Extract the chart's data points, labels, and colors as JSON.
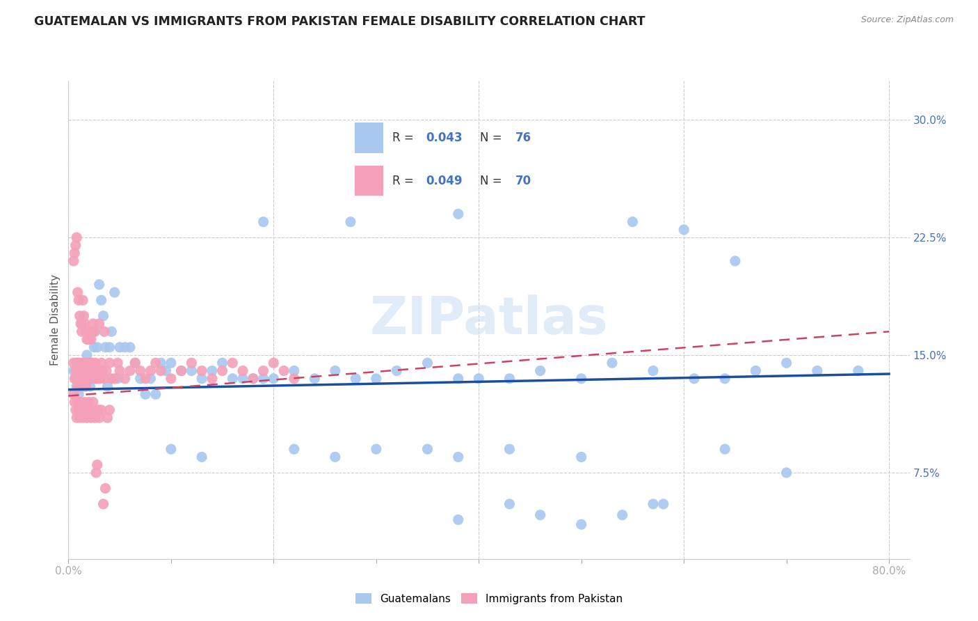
{
  "title": "GUATEMALAN VS IMMIGRANTS FROM PAKISTAN FEMALE DISABILITY CORRELATION CHART",
  "source": "Source: ZipAtlas.com",
  "ylabel": "Female Disability",
  "xlim": [
    0.0,
    0.82
  ],
  "ylim": [
    0.02,
    0.325
  ],
  "blue_color": "#a8c8f0",
  "pink_color": "#f4a0b8",
  "blue_line_color": "#1a4fa0",
  "pink_line_color": "#d04060",
  "watermark": "ZIPatlas",
  "legend_r1_black": "R = ",
  "legend_r1_blue": "0.043",
  "legend_n1_black": "   N = ",
  "legend_n1_blue": "76",
  "legend_r2_black": "R = ",
  "legend_r2_blue": "0.049",
  "legend_n2_black": "   N = ",
  "legend_n2_blue": "70",
  "guatemalan_scatter_x": [
    0.005,
    0.007,
    0.008,
    0.009,
    0.01,
    0.01,
    0.012,
    0.013,
    0.014,
    0.015,
    0.015,
    0.016,
    0.017,
    0.018,
    0.018,
    0.019,
    0.02,
    0.02,
    0.021,
    0.022,
    0.023,
    0.024,
    0.025,
    0.026,
    0.027,
    0.028,
    0.03,
    0.032,
    0.034,
    0.036,
    0.038,
    0.04,
    0.042,
    0.045,
    0.048,
    0.05,
    0.055,
    0.06,
    0.065,
    0.07,
    0.075,
    0.08,
    0.085,
    0.09,
    0.095,
    0.1,
    0.11,
    0.12,
    0.13,
    0.14,
    0.15,
    0.16,
    0.17,
    0.18,
    0.19,
    0.2,
    0.22,
    0.24,
    0.26,
    0.28,
    0.3,
    0.32,
    0.35,
    0.38,
    0.4,
    0.43,
    0.46,
    0.5,
    0.53,
    0.57,
    0.61,
    0.64,
    0.67,
    0.7,
    0.73,
    0.77
  ],
  "guatemalan_scatter_y": [
    0.14,
    0.135,
    0.13,
    0.145,
    0.14,
    0.125,
    0.135,
    0.13,
    0.14,
    0.135,
    0.145,
    0.14,
    0.13,
    0.135,
    0.15,
    0.14,
    0.135,
    0.14,
    0.13,
    0.145,
    0.135,
    0.14,
    0.155,
    0.165,
    0.135,
    0.155,
    0.195,
    0.185,
    0.175,
    0.155,
    0.13,
    0.155,
    0.165,
    0.19,
    0.135,
    0.155,
    0.155,
    0.155,
    0.145,
    0.135,
    0.125,
    0.135,
    0.125,
    0.145,
    0.14,
    0.145,
    0.14,
    0.14,
    0.135,
    0.14,
    0.145,
    0.135,
    0.135,
    0.135,
    0.135,
    0.135,
    0.14,
    0.135,
    0.14,
    0.135,
    0.135,
    0.14,
    0.145,
    0.135,
    0.135,
    0.135,
    0.14,
    0.135,
    0.145,
    0.14,
    0.135,
    0.135,
    0.14,
    0.145,
    0.14,
    0.14
  ],
  "guatemalan_outlier_x": [
    0.19,
    0.275,
    0.38,
    0.55,
    0.6,
    0.65
  ],
  "guatemalan_outlier_y": [
    0.235,
    0.235,
    0.24,
    0.235,
    0.23,
    0.21
  ],
  "guatemalan_low_x": [
    0.1,
    0.13,
    0.22,
    0.26,
    0.3,
    0.35,
    0.38,
    0.43,
    0.5,
    0.57,
    0.64,
    0.7
  ],
  "guatemalan_low_y": [
    0.09,
    0.085,
    0.09,
    0.085,
    0.09,
    0.09,
    0.085,
    0.09,
    0.085,
    0.055,
    0.09,
    0.075
  ],
  "guatemalan_vlow_x": [
    0.38,
    0.43,
    0.46,
    0.5,
    0.54,
    0.58
  ],
  "guatemalan_vlow_y": [
    0.045,
    0.055,
    0.048,
    0.042,
    0.048,
    0.055
  ],
  "pakistan_scatter_x": [
    0.005,
    0.006,
    0.007,
    0.008,
    0.008,
    0.009,
    0.009,
    0.01,
    0.01,
    0.011,
    0.011,
    0.012,
    0.012,
    0.013,
    0.013,
    0.014,
    0.014,
    0.015,
    0.015,
    0.016,
    0.016,
    0.017,
    0.017,
    0.018,
    0.018,
    0.019,
    0.019,
    0.02,
    0.02,
    0.021,
    0.022,
    0.023,
    0.024,
    0.025,
    0.026,
    0.027,
    0.028,
    0.029,
    0.03,
    0.031,
    0.032,
    0.033,
    0.035,
    0.037,
    0.04,
    0.042,
    0.045,
    0.048,
    0.05,
    0.055,
    0.06,
    0.065,
    0.07,
    0.075,
    0.08,
    0.085,
    0.09,
    0.1,
    0.11,
    0.12,
    0.13,
    0.14,
    0.15,
    0.16,
    0.17,
    0.18,
    0.19,
    0.2,
    0.21,
    0.22
  ],
  "pakistan_scatter_y": [
    0.145,
    0.135,
    0.14,
    0.135,
    0.145,
    0.14,
    0.13,
    0.145,
    0.135,
    0.14,
    0.13,
    0.145,
    0.14,
    0.135,
    0.14,
    0.145,
    0.13,
    0.135,
    0.14,
    0.145,
    0.135,
    0.14,
    0.13,
    0.145,
    0.14,
    0.135,
    0.14,
    0.145,
    0.135,
    0.14,
    0.135,
    0.145,
    0.14,
    0.135,
    0.145,
    0.135,
    0.14,
    0.135,
    0.14,
    0.135,
    0.145,
    0.14,
    0.135,
    0.14,
    0.145,
    0.135,
    0.135,
    0.145,
    0.14,
    0.135,
    0.14,
    0.145,
    0.14,
    0.135,
    0.14,
    0.145,
    0.14,
    0.135,
    0.14,
    0.145,
    0.14,
    0.135,
    0.14,
    0.145,
    0.14,
    0.135,
    0.14,
    0.145,
    0.14,
    0.135
  ],
  "pakistan_high_x": [
    0.005,
    0.006,
    0.007,
    0.008,
    0.009,
    0.01,
    0.011,
    0.012,
    0.013,
    0.013,
    0.014,
    0.015,
    0.016,
    0.017,
    0.018,
    0.019,
    0.02,
    0.021,
    0.022,
    0.023,
    0.024,
    0.025,
    0.03,
    0.035
  ],
  "pakistan_high_y": [
    0.21,
    0.215,
    0.22,
    0.225,
    0.19,
    0.185,
    0.175,
    0.17,
    0.165,
    0.17,
    0.185,
    0.175,
    0.17,
    0.165,
    0.16,
    0.165,
    0.16,
    0.165,
    0.16,
    0.165,
    0.17,
    0.165,
    0.17,
    0.165
  ],
  "pakistan_low_x": [
    0.005,
    0.006,
    0.007,
    0.008,
    0.009,
    0.01,
    0.011,
    0.012,
    0.013,
    0.014,
    0.015,
    0.016,
    0.017,
    0.018,
    0.019,
    0.02,
    0.021,
    0.022,
    0.023,
    0.024,
    0.025,
    0.026,
    0.027,
    0.028,
    0.029,
    0.03,
    0.032,
    0.034,
    0.036,
    0.038,
    0.04
  ],
  "pakistan_low_y": [
    0.125,
    0.12,
    0.115,
    0.11,
    0.12,
    0.115,
    0.11,
    0.12,
    0.115,
    0.11,
    0.115,
    0.12,
    0.115,
    0.11,
    0.115,
    0.12,
    0.115,
    0.11,
    0.115,
    0.12,
    0.115,
    0.11,
    0.075,
    0.08,
    0.115,
    0.11,
    0.115,
    0.055,
    0.065,
    0.11,
    0.115
  ]
}
